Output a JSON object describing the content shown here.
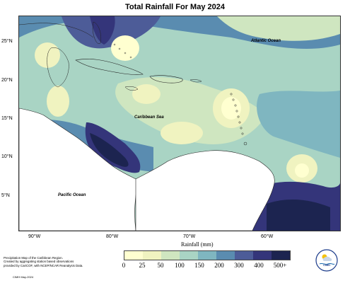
{
  "title": "Total Rainfall For May 2024",
  "map": {
    "latitude_labels": [
      "25°N",
      "20°N",
      "15°N",
      "10°N",
      "5°N"
    ],
    "longitude_labels": [
      "90°W",
      "80°W",
      "70°W",
      "60°W"
    ],
    "ocean_labels": {
      "atlantic": "Atlantic Ocean",
      "caribbean": "Caribbean Sea",
      "pacific": "Pacific Ocean"
    }
  },
  "legend": {
    "unit_label": "Rainfall (mm)",
    "ticks": [
      "0",
      "25",
      "50",
      "100",
      "150",
      "200",
      "300",
      "400",
      "500+"
    ],
    "colors": [
      "#ffffd0",
      "#f0f3c0",
      "#cfe6c0",
      "#a9d4c4",
      "#7fb6c0",
      "#5a8cb0",
      "#4d5c98",
      "#34357a",
      "#1c2450"
    ]
  },
  "footer": {
    "note_lines": [
      "Precipitation Map of the Caribbean Region.",
      "Created by aggregating station based observations",
      "provided by CariCOF, with NCEP/NCAR Reanalysis Data."
    ],
    "credit": "CIMH May-2024",
    "logo_text": "CIMH"
  }
}
